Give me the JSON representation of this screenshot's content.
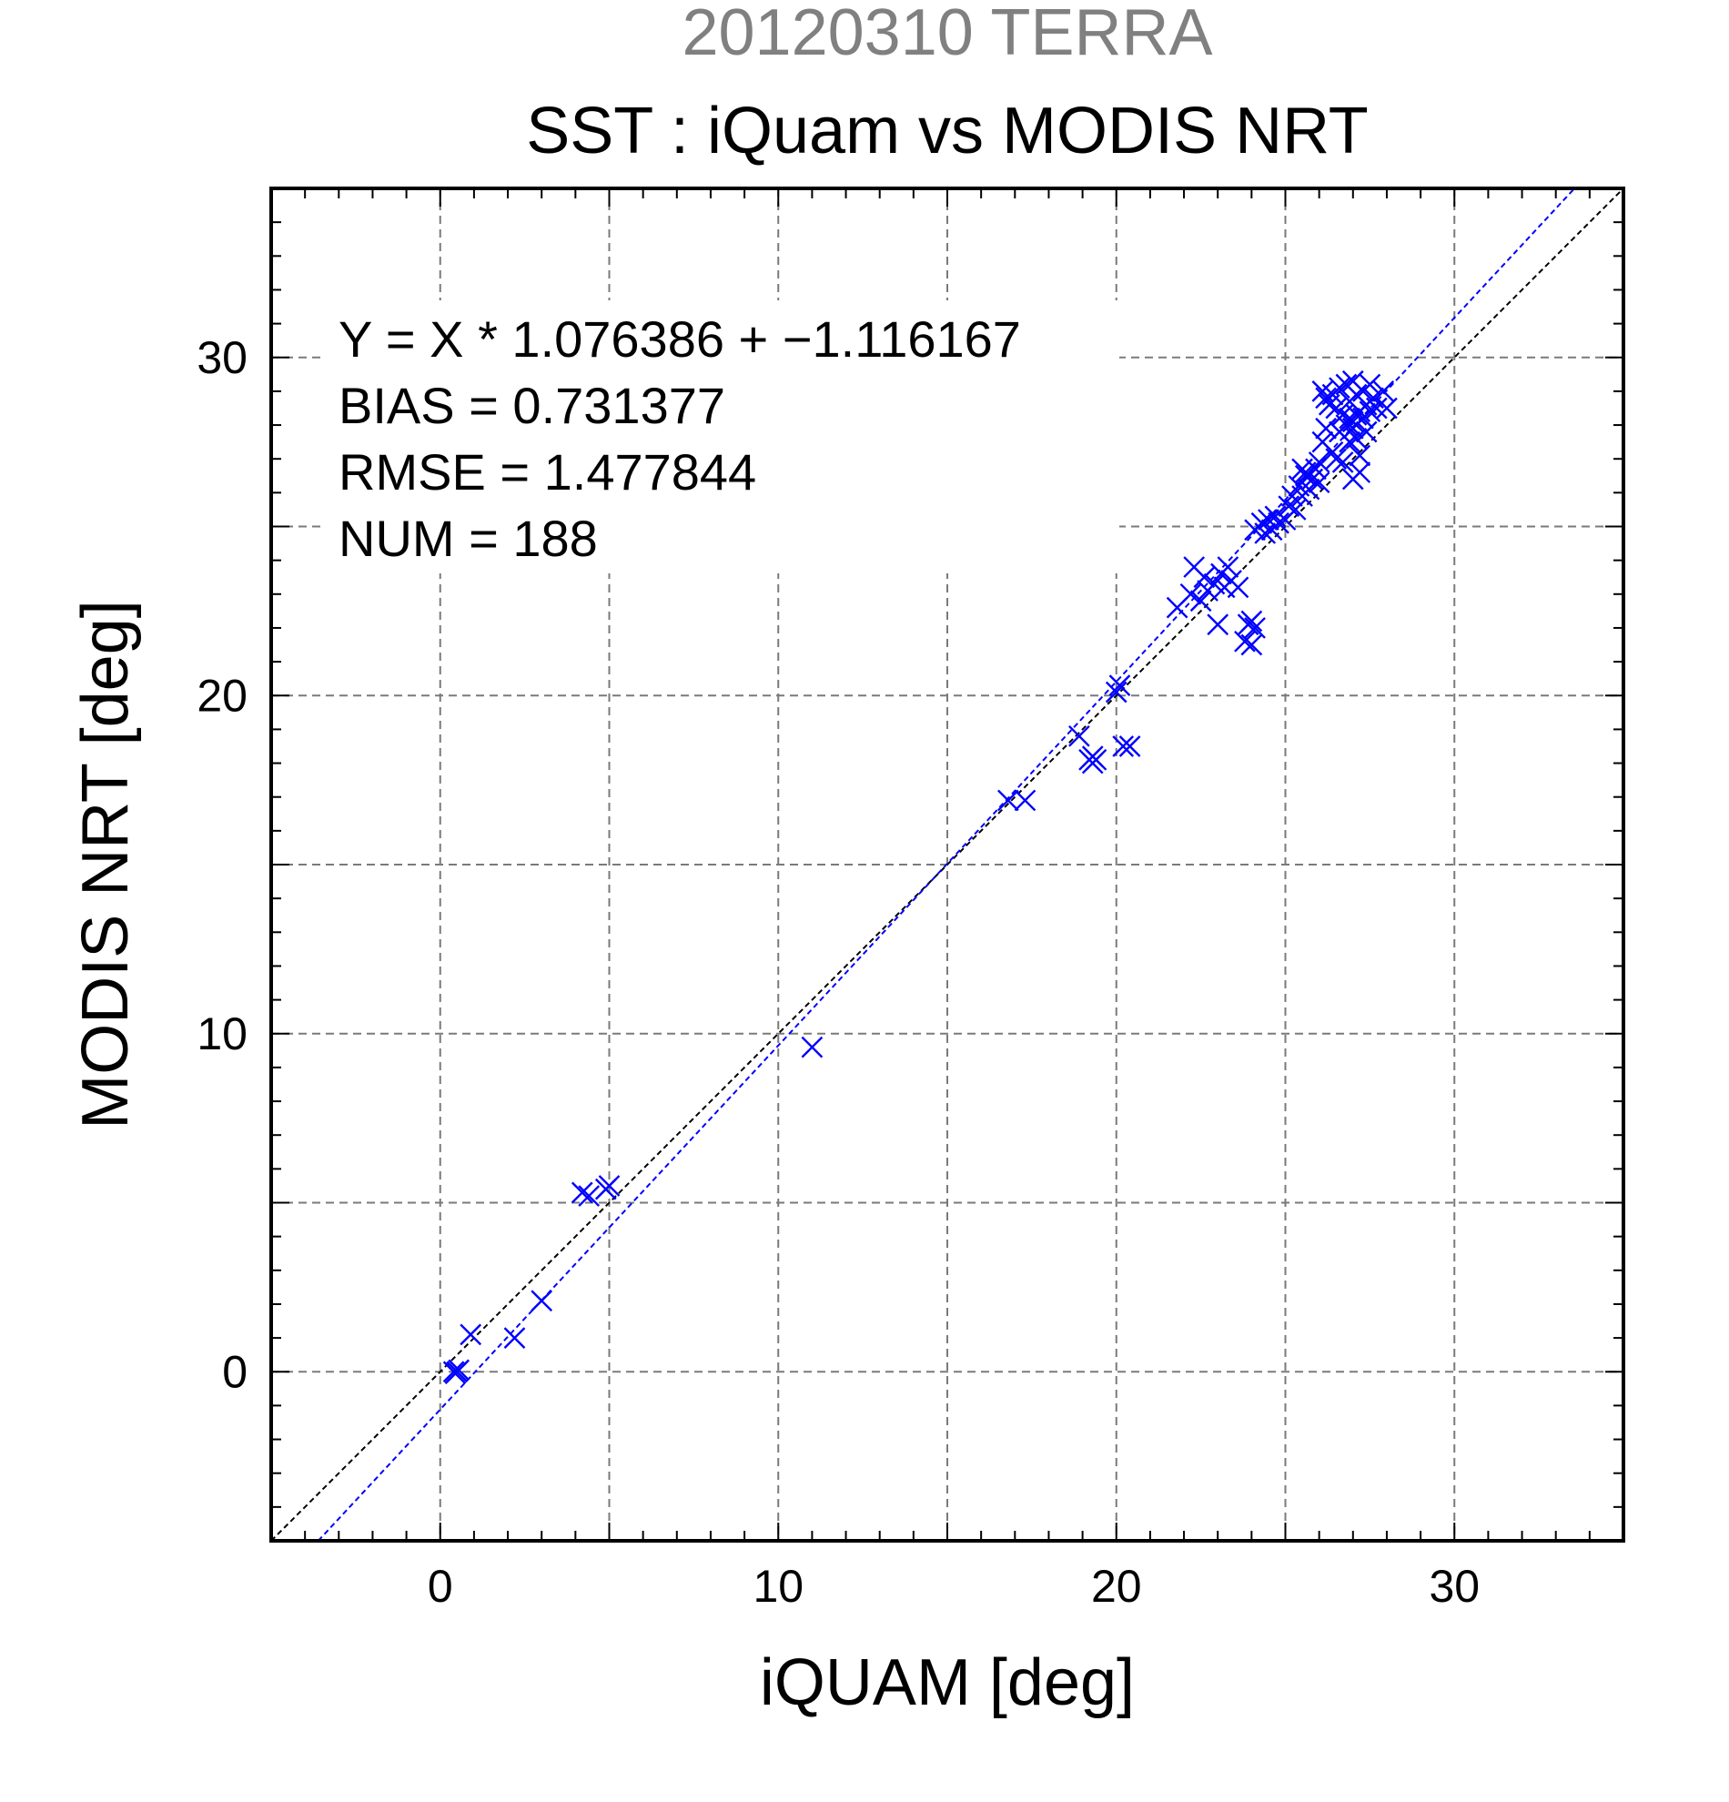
{
  "page": {
    "background": "#ffffff",
    "header_color": "#808080",
    "marker_color": "#0000ff"
  },
  "chart_data": {
    "type": "scatter",
    "header": "20120310 TERRA",
    "title": "SST : iQuam vs MODIS NRT",
    "xlabel": "iQUAM [deg]",
    "ylabel": "MODIS NRT [deg]",
    "xlim": [
      -5,
      35
    ],
    "ylim": [
      -5,
      35
    ],
    "xticks": [
      0,
      10,
      20,
      30
    ],
    "yticks": [
      0,
      10,
      20,
      30
    ],
    "grid": true,
    "grid_step": 5,
    "marker": "x",
    "stats": {
      "equation": "Y = X * 1.076386 + −1.116167",
      "bias": "BIAS = 0.731377",
      "rmse": "RMSE = 1.477844",
      "num": "NUM = 188"
    },
    "fit": {
      "slope": 1.076386,
      "intercept": -1.116167
    },
    "reference_line": {
      "slope": 1,
      "intercept": 0
    },
    "points": [
      [
        0.4,
        0.0
      ],
      [
        0.5,
        0.0
      ],
      [
        0.45,
        -0.05
      ],
      [
        0.55,
        0.05
      ],
      [
        0.9,
        1.1
      ],
      [
        2.2,
        1.0
      ],
      [
        3.0,
        2.1
      ],
      [
        4.2,
        5.3
      ],
      [
        4.4,
        5.2
      ],
      [
        4.9,
        5.4
      ],
      [
        5.0,
        5.5
      ],
      [
        11.0,
        9.6
      ],
      [
        16.8,
        16.9
      ],
      [
        17.3,
        16.9
      ],
      [
        18.9,
        18.8
      ],
      [
        19.2,
        18.1
      ],
      [
        19.3,
        18.2
      ],
      [
        19.4,
        18.1
      ],
      [
        19.3,
        18.0
      ],
      [
        20.0,
        20.1
      ],
      [
        20.1,
        20.3
      ],
      [
        20.2,
        18.5
      ],
      [
        20.4,
        18.5
      ],
      [
        21.8,
        22.6
      ],
      [
        22.2,
        23.0
      ],
      [
        22.3,
        23.8
      ],
      [
        22.5,
        22.8
      ],
      [
        22.6,
        23.5
      ],
      [
        22.7,
        23.1
      ],
      [
        22.9,
        23.3
      ],
      [
        23.0,
        22.1
      ],
      [
        23.1,
        23.6
      ],
      [
        23.2,
        23.2
      ],
      [
        23.3,
        23.8
      ],
      [
        23.4,
        23.4
      ],
      [
        23.6,
        23.2
      ],
      [
        23.8,
        21.6
      ],
      [
        23.9,
        22.1
      ],
      [
        24.0,
        21.5
      ],
      [
        24.1,
        22.0
      ],
      [
        24.0,
        22.2
      ],
      [
        24.1,
        24.9
      ],
      [
        24.3,
        25.1
      ],
      [
        24.4,
        24.8
      ],
      [
        24.5,
        25.2
      ],
      [
        24.6,
        24.9
      ],
      [
        24.7,
        25.3
      ],
      [
        24.8,
        25.1
      ],
      [
        25.0,
        25.2
      ],
      [
        25.1,
        25.6
      ],
      [
        25.2,
        25.9
      ],
      [
        25.3,
        25.5
      ],
      [
        25.4,
        26.2
      ],
      [
        25.5,
        25.9
      ],
      [
        25.6,
        26.6
      ],
      [
        25.7,
        26.1
      ],
      [
        25.8,
        26.4
      ],
      [
        25.9,
        26.7
      ],
      [
        25.5,
        26.7
      ],
      [
        25.6,
        26.5
      ],
      [
        26.0,
        26.3
      ],
      [
        26.0,
        26.9
      ],
      [
        26.1,
        27.5
      ],
      [
        26.1,
        29.0
      ],
      [
        26.2,
        28.8
      ],
      [
        26.2,
        27.9
      ],
      [
        26.3,
        28.6
      ],
      [
        26.4,
        27.2
      ],
      [
        26.4,
        28.9
      ],
      [
        26.5,
        27.0
      ],
      [
        26.5,
        28.5
      ],
      [
        26.6,
        29.1
      ],
      [
        26.6,
        27.8
      ],
      [
        26.7,
        28.3
      ],
      [
        26.7,
        26.9
      ],
      [
        26.8,
        29.2
      ],
      [
        26.8,
        28.0
      ],
      [
        26.9,
        27.5
      ],
      [
        26.9,
        28.7
      ],
      [
        27.0,
        29.3
      ],
      [
        27.0,
        28.1
      ],
      [
        27.0,
        26.4
      ],
      [
        27.1,
        28.9
      ],
      [
        27.1,
        27.6
      ],
      [
        27.2,
        28.4
      ],
      [
        27.2,
        27.1
      ],
      [
        27.3,
        29.0
      ],
      [
        27.3,
        28.2
      ],
      [
        27.2,
        26.6
      ],
      [
        27.4,
        28.6
      ],
      [
        27.4,
        27.8
      ],
      [
        27.5,
        29.2
      ],
      [
        27.5,
        28.4
      ],
      [
        27.6,
        28.8
      ],
      [
        27.7,
        28.5
      ],
      [
        27.9,
        29.0
      ],
      [
        28.0,
        28.5
      ],
      [
        26.9,
        28.2
      ],
      [
        27.0,
        27.9
      ],
      [
        27.1,
        28.3
      ]
    ]
  }
}
